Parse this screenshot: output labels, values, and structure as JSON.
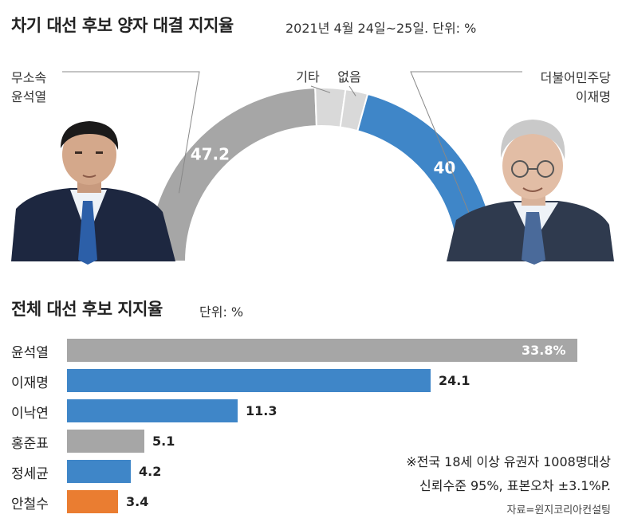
{
  "header": {
    "title": "차기 대선 후보 양자 대결 지지율",
    "subtitle": "2021년 4월 24일~25일. 단위: %"
  },
  "head_to_head": {
    "left_candidate": {
      "affiliation": "무소속",
      "name": "윤석열"
    },
    "right_candidate": {
      "affiliation": "더불어민주당",
      "name": "이재명"
    }
  },
  "section2": {
    "title": "전체 대선 후보 지지율",
    "unit": "단위: %"
  },
  "note": {
    "line1": "※전국 18세 이상 유권자 1008명대상",
    "line2": "신뢰수준 95%, 표본오차 ±3.1%P."
  },
  "source": "자료=윈지코리아컨설팅",
  "colors": {
    "gray": "#a6a6a6",
    "light_gray": "#d9d9d9",
    "blue": "#3f86c8",
    "orange": "#ea7d31"
  },
  "chart_data": [
    {
      "type": "pie",
      "variant": "semicircle-donut",
      "slices": [
        {
          "label": "윤석열",
          "value": 47.2,
          "display": "47.2",
          "color": "#a6a6a6"
        },
        {
          "label": "기타",
          "value": 5.4,
          "display": "",
          "color": "#d9d9d9"
        },
        {
          "label": "없음",
          "value": 4.0,
          "display": "",
          "color": "#d9d9d9"
        },
        {
          "label": "이재명",
          "value": 40,
          "display": "40",
          "color": "#3f86c8"
        }
      ]
    },
    {
      "type": "bar",
      "orientation": "horizontal",
      "categories": [
        "윤석열",
        "이재명",
        "이낙연",
        "홍준표",
        "정세균",
        "안철수"
      ],
      "values": [
        33.8,
        24.1,
        11.3,
        5.1,
        4.2,
        3.4
      ],
      "value_labels": [
        "33.8%",
        "24.1",
        "11.3",
        "5.1",
        "4.2",
        "3.4"
      ],
      "colors": [
        "#a6a6a6",
        "#3f86c8",
        "#3f86c8",
        "#a6a6a6",
        "#3f86c8",
        "#ea7d31"
      ]
    }
  ]
}
